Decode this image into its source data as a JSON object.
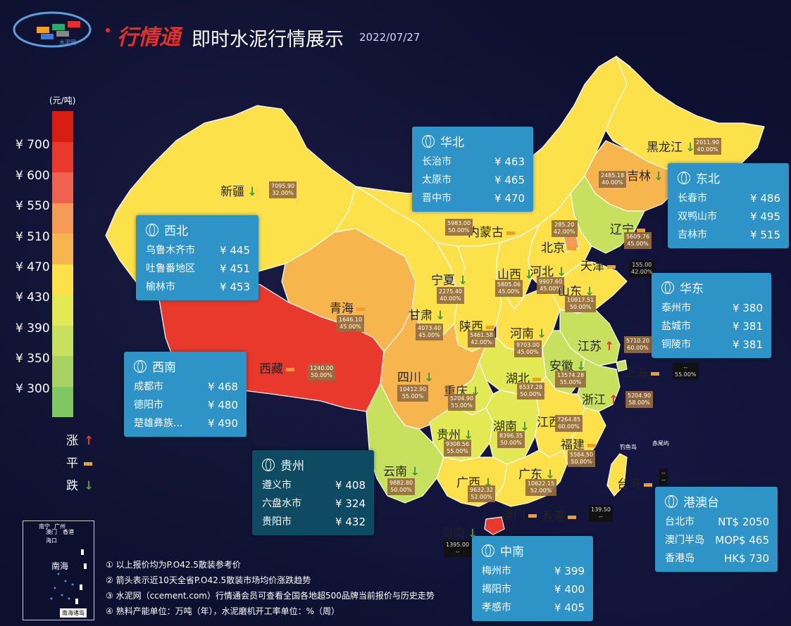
{
  "header": {
    "brand": "行情通",
    "title": "即时水泥行情展示",
    "date": "2022/07/27",
    "logo_text": "水泥网"
  },
  "legend": {
    "unit": "(元/吨)",
    "ticks": [
      "¥ 700",
      "¥ 600",
      "¥ 550",
      "¥ 510",
      "¥ 470",
      "¥ 430",
      "¥ 390",
      "¥ 350",
      "¥ 300"
    ],
    "colors": [
      "#d81e12",
      "#e8392c",
      "#f06250",
      "#f49c55",
      "#f7b54e",
      "#fde14a",
      "#e3e855",
      "#c7e05e",
      "#a8d362",
      "#7fc861"
    ],
    "trend": [
      {
        "label": "涨",
        "symbol": "↑"
      },
      {
        "label": "平",
        "symbol": "▬"
      },
      {
        "label": "跌",
        "symbol": "↓"
      }
    ]
  },
  "provinces": [
    {
      "name": "新疆",
      "trend": "down",
      "stat1": "7095.90",
      "stat2": "32.00%"
    },
    {
      "name": "黑龙江",
      "trend": "down",
      "stat1": "2011.90",
      "stat2": "40.00%"
    },
    {
      "name": "吉林",
      "trend": "down",
      "stat1": "2485.18",
      "stat2": "40.00%"
    },
    {
      "name": "内蒙古",
      "trend": "flat",
      "stat1": "5983.00",
      "stat2": "50.00%"
    },
    {
      "name": "辽宁",
      "trend": "flat",
      "stat1": "5609.76",
      "stat2": "45.00%"
    },
    {
      "name": "北京",
      "trend": "flat",
      "stat1": "285.20",
      "stat2": "42.00%"
    },
    {
      "name": "天津",
      "trend": "flat",
      "stat1": "155.00",
      "stat2": "42.00%"
    },
    {
      "name": "河北",
      "trend": "down",
      "stat1": "9907.60",
      "stat2": "45.00%"
    },
    {
      "name": "山西",
      "trend": "down",
      "stat1": "5805.06",
      "stat2": "45.00%"
    },
    {
      "name": "山东",
      "trend": "down",
      "stat1": "10817.51",
      "stat2": "50.00%"
    },
    {
      "name": "宁夏",
      "trend": "down",
      "stat1": "2275.40",
      "stat2": "40.00%"
    },
    {
      "name": "甘肃",
      "trend": "down",
      "stat1": "4073.40",
      "stat2": "45.00%"
    },
    {
      "name": "青海",
      "trend": "flat",
      "stat1": "1646.10",
      "stat2": "45.00%"
    },
    {
      "name": "陕西",
      "trend": "flat",
      "stat1": "5461.58",
      "stat2": "42.00%"
    },
    {
      "name": "河南",
      "trend": "down",
      "stat1": "9703.00",
      "stat2": "45.00%"
    },
    {
      "name": "江苏",
      "trend": "up",
      "stat1": "5710.20",
      "stat2": "60.00%"
    },
    {
      "name": "安徽",
      "trend": "down",
      "stat1": "13574.28",
      "stat2": "55.00%"
    },
    {
      "name": "上海",
      "trend": "flat",
      "stat1": "--",
      "stat2": "55.00%"
    },
    {
      "name": "西藏",
      "trend": "flat",
      "stat1": "1240.00",
      "stat2": "50.00%"
    },
    {
      "name": "四川",
      "trend": "down",
      "stat1": "10412.90",
      "stat2": "55.00%"
    },
    {
      "name": "重庆",
      "trend": "down",
      "stat1": "5204.90",
      "stat2": "55.00%"
    },
    {
      "name": "湖北",
      "trend": "flat",
      "stat1": "6537.28",
      "stat2": "50.00%"
    },
    {
      "name": "浙江",
      "trend": "up",
      "stat1": "5204.90",
      "stat2": "58.00%"
    },
    {
      "name": "江西",
      "trend": "down",
      "stat1": "7264.85",
      "stat2": "60.00%"
    },
    {
      "name": "湖南",
      "trend": "down",
      "stat1": "8396.35",
      "stat2": "50.00%"
    },
    {
      "name": "贵州",
      "trend": "down",
      "stat1": "9308.56",
      "stat2": "55.00%"
    },
    {
      "name": "福建",
      "trend": "flat",
      "stat1": "5564.50",
      "stat2": "50.00%"
    },
    {
      "name": "云南",
      "trend": "down",
      "stat1": "9882.80",
      "stat2": "50.00%"
    },
    {
      "name": "广西",
      "trend": "down",
      "stat1": "9632.32",
      "stat2": "52.00%"
    },
    {
      "name": "广东",
      "trend": "down",
      "stat1": "10622.15",
      "stat2": "52.00%"
    },
    {
      "name": "台湾",
      "trend": "flat",
      "stat1": "--",
      "stat2": "--"
    },
    {
      "name": "澳门",
      "trend": "flat",
      "stat1": "",
      "stat2": ""
    },
    {
      "name": "香港",
      "trend": "flat",
      "stat1": "139.50",
      "stat2": "--"
    },
    {
      "name": "海南",
      "trend": "down",
      "stat1": "1395.00",
      "stat2": "--"
    }
  ],
  "islands": {
    "diaoyu": "钓鱼岛",
    "chiwei": "赤尾屿"
  },
  "boxes": [
    {
      "region": "华北",
      "rows": [
        [
          "长治市",
          "¥ 463"
        ],
        [
          "太原市",
          "¥ 465"
        ],
        [
          "晋中市",
          "¥ 470"
        ]
      ]
    },
    {
      "region": "东北",
      "rows": [
        [
          "长春市",
          "¥ 486"
        ],
        [
          "双鸭山市",
          "¥ 495"
        ],
        [
          "吉林市",
          "¥ 515"
        ]
      ]
    },
    {
      "region": "西北",
      "rows": [
        [
          "乌鲁木齐市",
          "¥ 445"
        ],
        [
          "吐鲁番地区",
          "¥ 451"
        ],
        [
          "榆林市",
          "¥ 453"
        ]
      ]
    },
    {
      "region": "华东",
      "rows": [
        [
          "泰州市",
          "¥ 380"
        ],
        [
          "盐城市",
          "¥ 381"
        ],
        [
          "铜陵市",
          "¥ 381"
        ]
      ]
    },
    {
      "region": "西南",
      "rows": [
        [
          "成都市",
          "¥ 468"
        ],
        [
          "德阳市",
          "¥ 480"
        ],
        [
          "楚雄彝族...",
          "¥ 490"
        ]
      ]
    },
    {
      "region": "贵州",
      "rows": [
        [
          "遵义市",
          "¥ 408"
        ],
        [
          "六盘水市",
          "¥ 324"
        ],
        [
          "贵阳市",
          "¥ 432"
        ]
      ]
    },
    {
      "region": "中南",
      "rows": [
        [
          "梅州市",
          "¥ 399"
        ],
        [
          "揭阳市",
          "¥ 400"
        ],
        [
          "孝感市",
          "¥ 405"
        ]
      ]
    },
    {
      "region": "港澳台",
      "rows": [
        [
          "台北市",
          "NT$ 2050"
        ],
        [
          "澳门半岛",
          "MOP$ 465"
        ],
        [
          "香港岛",
          "HK$ 730"
        ]
      ]
    }
  ],
  "notes": [
    "① 以上报价均为P.O42.5散装参考价",
    "② 箭头表示近10天全省P.O42.5散装市场均价涨跌趋势",
    "③ 水泥网（ccement.com）行情通会员可查看全国各地超500品牌当前报价与历史走势",
    "④ 熟料产能单位：万吨（年），水泥磨机开工率单位：%（周）"
  ],
  "inset": {
    "labels": [
      "南宁",
      "广州",
      "香港",
      "澳门",
      "海口"
    ],
    "sea": "南海",
    "islands": "南海诸岛"
  }
}
